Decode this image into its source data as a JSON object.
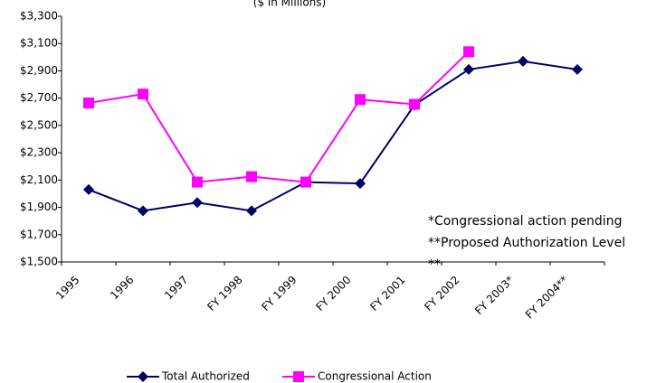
{
  "chart_data": {
    "type": "line",
    "subtitle": "($ in Millions)",
    "categories": [
      "1995",
      "1996",
      "1997",
      "FY 1998",
      "FY 1999",
      "FY 2000",
      "FY 2001",
      "FY 2002",
      "FY 2003*",
      "FY 2004**"
    ],
    "series": [
      {
        "name": "Total Authorized",
        "color": "#000066",
        "values": [
          2030,
          1875,
          1935,
          1875,
          2085,
          2075,
          2650,
          2910,
          2970,
          2910
        ]
      },
      {
        "name": "Congressional Action",
        "color": "#ff00ff",
        "values": [
          2665,
          2730,
          2085,
          2125,
          2085,
          2690,
          2655,
          3040,
          null,
          null
        ]
      }
    ],
    "ylim": [
      1500,
      3300
    ],
    "yticks": [
      {
        "value": 1500,
        "label": "$1,500"
      },
      {
        "value": 1700,
        "label": "$1,700"
      },
      {
        "value": 1900,
        "label": "$1,900"
      },
      {
        "value": 2100,
        "label": "$2,100"
      },
      {
        "value": 2300,
        "label": "$2,300"
      },
      {
        "value": 2500,
        "label": "$2,500"
      },
      {
        "value": 2700,
        "label": "$2,700"
      },
      {
        "value": 2900,
        "label": "$2,900"
      },
      {
        "value": 3100,
        "label": "$3,100"
      },
      {
        "value": 3300,
        "label": "$3,300"
      }
    ],
    "annotations": [
      "*Congressional action pending",
      "**Proposed Authorization Level",
      "**"
    ],
    "legend": "bottom"
  }
}
